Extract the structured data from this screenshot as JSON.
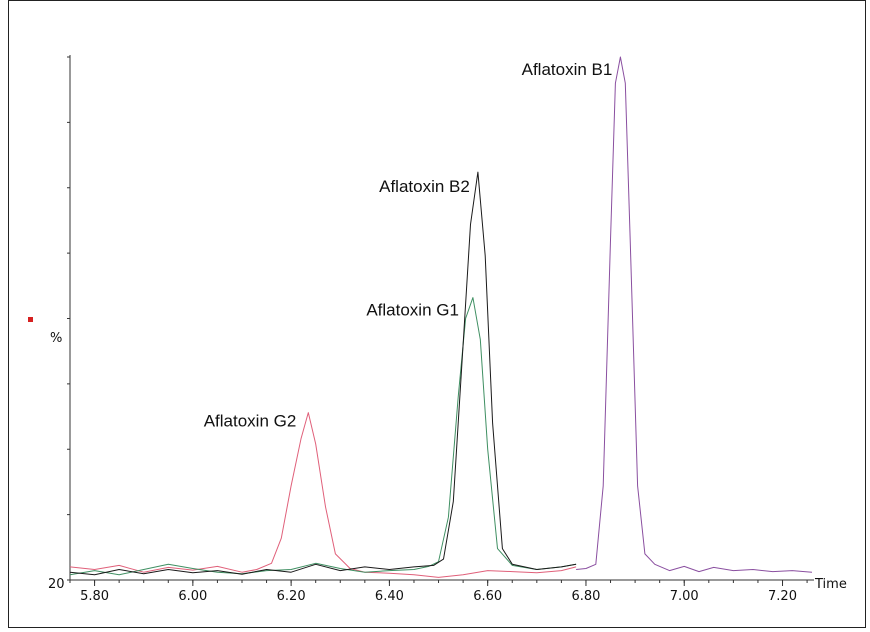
{
  "chart_data": {
    "type": "line",
    "title": "",
    "xlabel": "Time",
    "ylabel": "%",
    "y_axis_min_label": "20",
    "xlim": [
      5.75,
      7.26
    ],
    "ylim": [
      0,
      100
    ],
    "x_ticks": [
      "5.80",
      "6.00",
      "6.20",
      "6.40",
      "6.60",
      "6.80",
      "7.00",
      "7.20"
    ],
    "grid": false,
    "colors": {
      "b1": "#8a4fa0",
      "b2": "#1a1a1a",
      "g1": "#3f8f62",
      "g2": "#e0607a",
      "marker": "#d62020"
    },
    "annotations": [
      {
        "text": "Aflatoxin B1",
        "x": 6.87,
        "y": 100
      },
      {
        "text": "Aflatoxin B2",
        "x": 6.58,
        "y": 78
      },
      {
        "text": "Aflatoxin G1",
        "x": 6.57,
        "y": 54
      },
      {
        "text": "Aflatoxin G2",
        "x": 6.235,
        "y": 32
      }
    ],
    "series": [
      {
        "key": "g2",
        "x": [
          5.75,
          5.8,
          5.85,
          5.9,
          5.95,
          6.0,
          6.05,
          6.1,
          6.13,
          6.16,
          6.18,
          6.2,
          6.22,
          6.235,
          6.25,
          6.27,
          6.29,
          6.32,
          6.35,
          6.4,
          6.45,
          6.5,
          6.55,
          6.6,
          6.65,
          6.7,
          6.75,
          6.78
        ],
        "y": [
          2.5,
          2.0,
          2.8,
          1.5,
          2.4,
          1.9,
          2.6,
          1.5,
          2.0,
          3.2,
          8.0,
          18.0,
          27.0,
          32.0,
          26.0,
          14.0,
          5.0,
          2.2,
          1.5,
          1.3,
          1.0,
          0.5,
          1.0,
          1.8,
          1.6,
          1.4,
          1.8,
          2.5
        ]
      },
      {
        "key": "g1",
        "x": [
          5.75,
          5.8,
          5.85,
          5.9,
          5.95,
          6.0,
          6.05,
          6.1,
          6.15,
          6.2,
          6.25,
          6.3,
          6.35,
          6.4,
          6.45,
          6.48,
          6.5,
          6.52,
          6.54,
          6.555,
          6.57,
          6.585,
          6.6,
          6.62,
          6.65,
          6.7,
          6.75,
          6.78
        ],
        "y": [
          1.0,
          1.8,
          1.0,
          2.0,
          3.0,
          2.2,
          1.5,
          1.2,
          1.8,
          2.0,
          3.2,
          2.2,
          1.5,
          1.8,
          2.0,
          2.6,
          3.5,
          12.0,
          35.0,
          50.0,
          54.0,
          46.0,
          25.0,
          6.0,
          2.8,
          2.0,
          2.5,
          3.0
        ]
      },
      {
        "key": "b2",
        "x": [
          5.75,
          5.8,
          5.85,
          5.9,
          5.95,
          6.0,
          6.05,
          6.1,
          6.15,
          6.2,
          6.25,
          6.3,
          6.35,
          6.4,
          6.45,
          6.49,
          6.51,
          6.53,
          6.55,
          6.565,
          6.58,
          6.595,
          6.61,
          6.63,
          6.65,
          6.7,
          6.75,
          6.78
        ],
        "y": [
          1.5,
          1.0,
          2.0,
          1.2,
          2.0,
          1.4,
          1.8,
          1.1,
          2.0,
          1.5,
          3.0,
          1.8,
          2.5,
          2.0,
          2.5,
          2.8,
          4.0,
          15.0,
          45.0,
          68.0,
          78.0,
          62.0,
          30.0,
          6.0,
          3.0,
          2.0,
          2.5,
          3.0
        ]
      },
      {
        "key": "b1",
        "x": [
          6.78,
          6.8,
          6.82,
          6.835,
          6.85,
          6.86,
          6.87,
          6.88,
          6.89,
          6.905,
          6.92,
          6.94,
          6.97,
          7.0,
          7.03,
          7.06,
          7.1,
          7.14,
          7.18,
          7.22,
          7.26
        ],
        "y": [
          2.0,
          2.2,
          3.0,
          18.0,
          65.0,
          95.0,
          100.0,
          95.0,
          65.0,
          18.0,
          5.0,
          3.0,
          1.8,
          2.6,
          1.6,
          2.4,
          1.8,
          2.0,
          1.6,
          1.8,
          1.5
        ]
      }
    ]
  }
}
